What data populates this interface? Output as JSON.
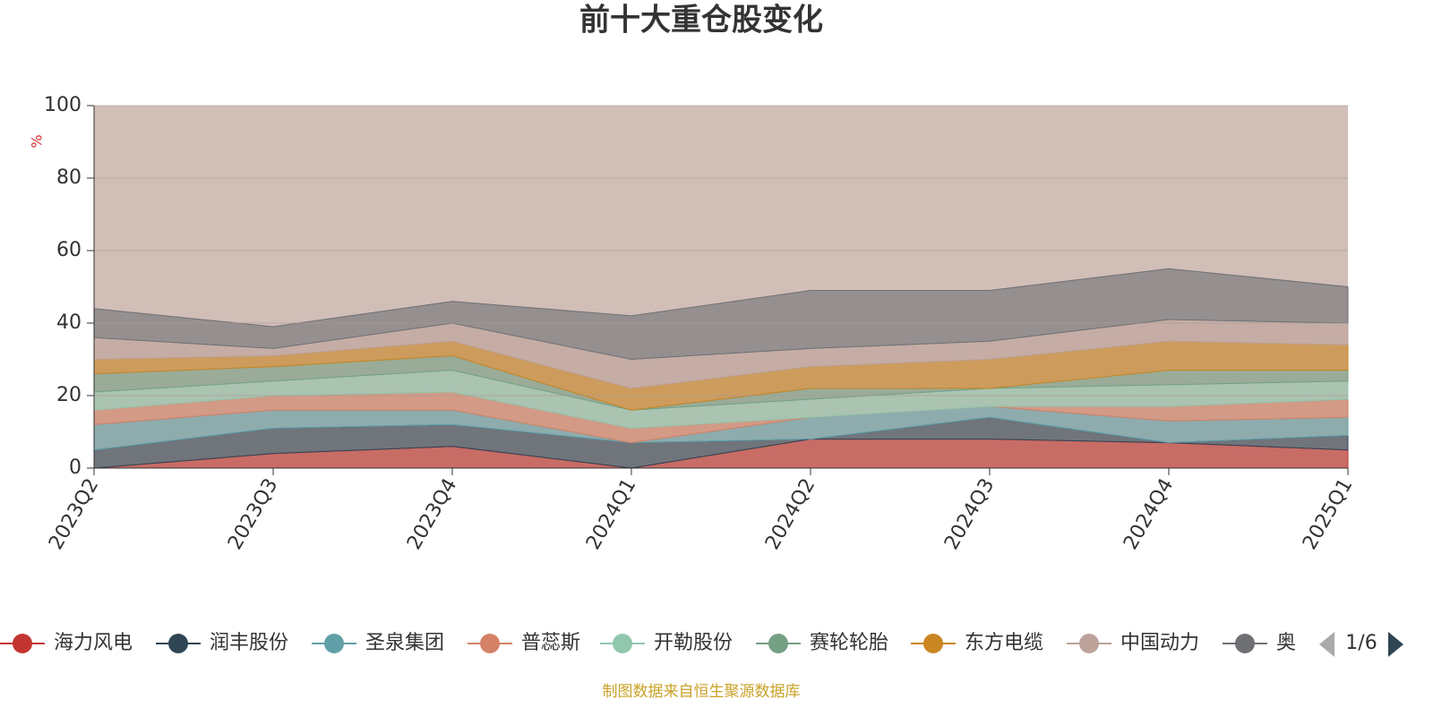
{
  "chart_data": {
    "type": "stacked_area",
    "title": "前十大重仓股变化",
    "y_axis_label": "%",
    "categories": [
      "2023Q2",
      "2023Q3",
      "2023Q4",
      "2024Q1",
      "2024Q2",
      "2024Q3",
      "2024Q4",
      "2025Q1"
    ],
    "ylim": [
      0,
      100
    ],
    "yticks": [
      0,
      20,
      40,
      60,
      80,
      100
    ],
    "grid": true,
    "series": [
      {
        "name": "海力风电",
        "color": "#c23531",
        "values": [
          0,
          4,
          6,
          0,
          8,
          8,
          7,
          5
        ]
      },
      {
        "name": "润丰股份",
        "color": "#2f4554",
        "values": [
          5,
          7,
          6,
          7,
          0,
          6,
          0,
          4
        ]
      },
      {
        "name": "圣泉集团",
        "color": "#61a0a8",
        "values": [
          7,
          5,
          4,
          0,
          6,
          3,
          6,
          5
        ]
      },
      {
        "name": "普蕊斯",
        "color": "#d48265",
        "values": [
          4,
          4,
          5,
          4,
          0,
          0,
          4,
          5
        ]
      },
      {
        "name": "开勒股份",
        "color": "#91c7ae",
        "values": [
          5,
          4,
          6,
          5,
          5,
          5,
          6,
          5
        ]
      },
      {
        "name": "赛轮轮胎",
        "color": "#749f83",
        "values": [
          5,
          4,
          4,
          0,
          3,
          0,
          4,
          3
        ]
      },
      {
        "name": "东方电缆",
        "color": "#ca8622",
        "values": [
          4,
          3,
          4,
          6,
          6,
          8,
          8,
          7
        ]
      },
      {
        "name": "中国动力",
        "color": "#bda29a",
        "values": [
          6,
          2,
          5,
          8,
          5,
          5,
          6,
          6
        ]
      },
      {
        "name": "奥",
        "color": "#6e7074",
        "values": [
          8,
          6,
          6,
          12,
          16,
          14,
          14,
          10
        ]
      }
    ],
    "legend_page": "1/6",
    "source": "制图数据来自恒生聚源数据库"
  }
}
